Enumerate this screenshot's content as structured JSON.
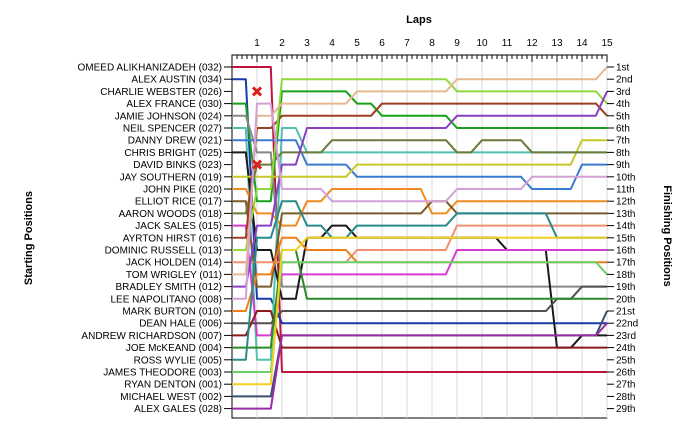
{
  "chart_data": {
    "type": "line",
    "title": "",
    "xlabel": "Laps",
    "ylabel_left": "Starting Positions",
    "ylabel_right": "Finishing Positions",
    "laps": [
      1,
      2,
      3,
      4,
      5,
      6,
      7,
      8,
      9,
      10,
      11,
      12,
      13,
      14,
      15
    ],
    "x_ticks": [
      "1",
      "2",
      "3",
      "4",
      "5",
      "6",
      "7",
      "8",
      "9",
      "10",
      "11",
      "12",
      "13",
      "14",
      "15"
    ],
    "grid": true,
    "starting_grid": [
      "OMEED ALIKHANIZADEH (032)",
      "ALEX AUSTIN (034)",
      "CHARLIE WEBSTER (026)",
      "ALEX FRANCE (030)",
      "JAMIE JOHNSON (024)",
      "NEIL SPENCER (027)",
      "DANNY DREW (021)",
      "CHRIS BRIGHT (025)",
      "DAVID BINKS (023)",
      "JAY SOUTHERN (019)",
      "JOHN PIKE (020)",
      "ELLIOT RICE (017)",
      "AARON WOODS (018)",
      "JACK SALES (015)",
      "AYRTON HIRST (016)",
      "DOMINIC RUSSELL (013)",
      "JACK HOLDEN (014)",
      "TOM WRIGLEY (011)",
      "BRADLEY SMITH (012)",
      "LEE NAPOLITANO (008)",
      "MARK BURTON (010)",
      "DEAN HALE (006)",
      "ANDREW RICHARDSON (007)",
      "JOE McKEAND (004)",
      "ROSS WYLIE (005)",
      "JAMES THEODORE (003)",
      "RYAN DENTON (001)",
      "MICHAEL WEST (002)",
      "ALEX GALES (028)"
    ],
    "finishing_labels": [
      "1st",
      "2nd",
      "3rd",
      "4th",
      "5th",
      "6th",
      "7th",
      "8th",
      "9th",
      "10th",
      "11th",
      "12th",
      "13th",
      "14th",
      "15th",
      "16th",
      "17th",
      "18th",
      "19th",
      "20th",
      "21st",
      "22nd",
      "23rd",
      "24th",
      "25th",
      "26th",
      "27th",
      "28th",
      "29th"
    ],
    "retired_markers": [
      {
        "start": 3,
        "lap": 1,
        "color": "#e02020"
      },
      {
        "start": 9,
        "lap": 1,
        "color": "#e02020"
      }
    ],
    "series": [
      {
        "start": 1,
        "color": "#c0143c",
        "positions": [
          1,
          26,
          26,
          26,
          26,
          26,
          26,
          26,
          26,
          26,
          26,
          26,
          26,
          26,
          26
        ]
      },
      {
        "start": 2,
        "color": "#1a3aa8",
        "positions": [
          20,
          22,
          22,
          22,
          22,
          22,
          22,
          22,
          22,
          22,
          22,
          22,
          22,
          22,
          22
        ]
      },
      {
        "start": 4,
        "color": "#18a018",
        "positions": [
          12,
          3,
          3,
          3,
          4,
          5,
          5,
          5,
          6,
          6,
          6,
          6,
          6,
          6,
          6
        ]
      },
      {
        "start": 5,
        "color": "#888888",
        "positions": [
          8,
          19,
          19,
          19,
          19,
          19,
          19,
          19,
          19,
          19,
          19,
          19,
          19,
          19,
          19
        ]
      },
      {
        "start": 6,
        "color": "#50c0b0",
        "positions": [
          25,
          6,
          8,
          8,
          8,
          8,
          8,
          8,
          8,
          8,
          8,
          8,
          8,
          8,
          8
        ]
      },
      {
        "start": 7,
        "color": "#3a7ad0",
        "positions": [
          7,
          7,
          9,
          9,
          10,
          10,
          10,
          10,
          10,
          10,
          10,
          11,
          11,
          9,
          9
        ]
      },
      {
        "start": 8,
        "color": "#1a1a1a",
        "positions": [
          16,
          20,
          15,
          14,
          15,
          15,
          15,
          15,
          15,
          15,
          16,
          16,
          24,
          23,
          23
        ]
      },
      {
        "start": 10,
        "color": "#c8c828",
        "positions": [
          10,
          10,
          10,
          10,
          9,
          9,
          9,
          9,
          9,
          9,
          9,
          9,
          9,
          7,
          7
        ]
      },
      {
        "start": 11,
        "color": "#f08c20",
        "positions": [
          13,
          14,
          12,
          11,
          11,
          11,
          11,
          13,
          12,
          12,
          12,
          12,
          12,
          12,
          12
        ]
      },
      {
        "start": 12,
        "color": "#7a5a2a",
        "positions": [
          19,
          13,
          13,
          13,
          13,
          13,
          13,
          12,
          13,
          13,
          13,
          13,
          13,
          13,
          13
        ]
      },
      {
        "start": 13,
        "color": "#6a7a3a",
        "positions": [
          9,
          8,
          8,
          7,
          7,
          7,
          7,
          7,
          8,
          7,
          7,
          8,
          8,
          8,
          8
        ]
      },
      {
        "start": 14,
        "color": "#d83ad0",
        "positions": [
          23,
          18,
          18,
          18,
          18,
          18,
          18,
          18,
          16,
          16,
          16,
          16,
          16,
          16,
          16
        ]
      },
      {
        "start": 15,
        "color": "#9a4020",
        "positions": [
          6,
          5,
          5,
          5,
          5,
          4,
          4,
          4,
          4,
          4,
          4,
          4,
          4,
          4,
          5
        ]
      },
      {
        "start": 16,
        "color": "#90d840",
        "positions": [
          11,
          2,
          2,
          2,
          2,
          2,
          2,
          2,
          3,
          3,
          3,
          3,
          3,
          3,
          4
        ]
      },
      {
        "start": 17,
        "color": "#f09070",
        "positions": [
          17,
          17,
          17,
          17,
          16,
          16,
          16,
          16,
          14,
          14,
          14,
          14,
          14,
          14,
          14
        ]
      },
      {
        "start": 18,
        "color": "#e8b890",
        "positions": [
          5,
          4,
          4,
          4,
          3,
          3,
          3,
          3,
          2,
          2,
          2,
          2,
          2,
          2,
          1
        ]
      },
      {
        "start": 19,
        "color": "#8a40c0",
        "positions": [
          14,
          9,
          6,
          6,
          6,
          6,
          6,
          6,
          5,
          5,
          5,
          5,
          5,
          5,
          3
        ]
      },
      {
        "start": 20,
        "color": "#d4a0d8",
        "positions": [
          4,
          11,
          11,
          12,
          12,
          12,
          12,
          12,
          11,
          11,
          11,
          10,
          10,
          10,
          10
        ]
      },
      {
        "start": 21,
        "color": "#ef7f1a",
        "positions": [
          18,
          15,
          16,
          16,
          17,
          17,
          17,
          17,
          17,
          17,
          17,
          17,
          17,
          17,
          17
        ]
      },
      {
        "start": 22,
        "color": "#505050",
        "positions": [
          22,
          21,
          21,
          21,
          21,
          21,
          21,
          21,
          21,
          21,
          21,
          21,
          20,
          19,
          19
        ]
      },
      {
        "start": 23,
        "color": "#8c1a1a",
        "positions": [
          21,
          24,
          24,
          24,
          24,
          24,
          24,
          24,
          24,
          24,
          24,
          24,
          24,
          24,
          24
        ]
      },
      {
        "start": 24,
        "color": "#2a8a2a",
        "positions": [
          24,
          16,
          20,
          20,
          20,
          20,
          20,
          20,
          20,
          20,
          20,
          20,
          20,
          20,
          20
        ]
      },
      {
        "start": 25,
        "color": "#2a8a8a",
        "positions": [
          15,
          12,
          14,
          15,
          14,
          14,
          14,
          14,
          13,
          13,
          13,
          13,
          15,
          15,
          15
        ]
      },
      {
        "start": 26,
        "color": "#6ad06a",
        "positions": [
          26,
          17,
          17,
          17,
          17,
          17,
          17,
          17,
          17,
          17,
          17,
          17,
          17,
          17,
          18
        ]
      },
      {
        "start": 27,
        "color": "#f0d020",
        "positions": [
          27,
          16,
          15,
          15,
          15,
          15,
          15,
          15,
          15,
          15,
          15,
          15,
          15,
          15,
          15
        ]
      },
      {
        "start": 28,
        "color": "#3a5070",
        "positions": [
          28,
          23,
          23,
          23,
          23,
          23,
          23,
          23,
          23,
          23,
          23,
          23,
          23,
          23,
          21
        ]
      },
      {
        "start": 29,
        "color": "#9a2aa8",
        "positions": [
          29,
          23,
          23,
          23,
          23,
          23,
          23,
          23,
          23,
          23,
          23,
          23,
          23,
          23,
          22
        ]
      }
    ]
  }
}
